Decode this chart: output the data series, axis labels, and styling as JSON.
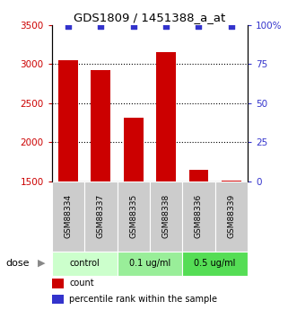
{
  "title": "GDS1809 / 1451388_a_at",
  "samples": [
    "GSM88334",
    "GSM88337",
    "GSM88335",
    "GSM88338",
    "GSM88336",
    "GSM88339"
  ],
  "bar_values": [
    3050,
    2920,
    2320,
    3150,
    1650,
    1510
  ],
  "percentile_values": [
    99,
    99,
    99,
    99,
    99,
    99
  ],
  "bar_color": "#cc0000",
  "dot_color": "#3333cc",
  "ylim_left": [
    1500,
    3500
  ],
  "ylim_right": [
    0,
    100
  ],
  "yticks_left": [
    1500,
    2000,
    2500,
    3000,
    3500
  ],
  "yticks_right": [
    0,
    25,
    50,
    75,
    100
  ],
  "groups": [
    {
      "label": "control",
      "indices": [
        0,
        1
      ],
      "color": "#ccffcc"
    },
    {
      "label": "0.1 ug/ml",
      "indices": [
        2,
        3
      ],
      "color": "#99ee99"
    },
    {
      "label": "0.5 ug/ml",
      "indices": [
        4,
        5
      ],
      "color": "#55dd55"
    }
  ],
  "dose_label": "dose",
  "legend_count_label": "count",
  "legend_pct_label": "percentile rank within the sample",
  "tick_label_color_left": "#cc0000",
  "tick_label_color_right": "#3333cc",
  "bar_width": 0.6,
  "background_color": "#ffffff",
  "label_area_color": "#cccccc",
  "grid_dotted_values": [
    2000,
    2500,
    3000
  ]
}
